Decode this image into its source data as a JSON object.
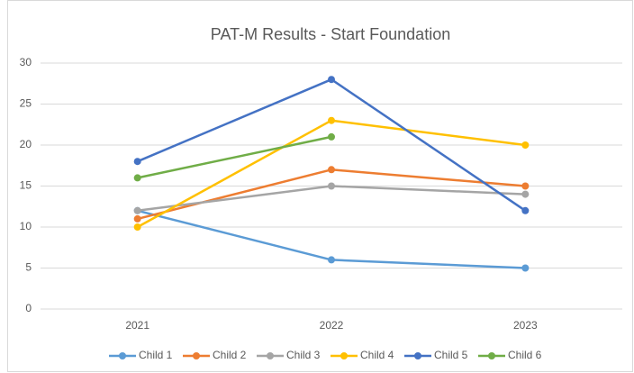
{
  "chart_data": {
    "type": "line",
    "title": "PAT-M Results - Start Foundation",
    "categories": [
      "2021",
      "2022",
      "2023"
    ],
    "series": [
      {
        "name": "Child 1",
        "color": "#5b9bd5",
        "values": [
          12,
          6,
          5
        ]
      },
      {
        "name": "Child 2",
        "color": "#ed7d31",
        "values": [
          11,
          17,
          15
        ]
      },
      {
        "name": "Child 3",
        "color": "#a5a5a5",
        "values": [
          12,
          15,
          14
        ]
      },
      {
        "name": "Child 4",
        "color": "#ffc000",
        "values": [
          10,
          23,
          20
        ]
      },
      {
        "name": "Child 5",
        "color": "#4472c4",
        "values": [
          18,
          28,
          12
        ]
      },
      {
        "name": "Child 6",
        "color": "#70ad47",
        "values": [
          16,
          21,
          null
        ]
      }
    ],
    "ylim": [
      0,
      30
    ],
    "yticks": [
      0,
      5,
      10,
      15,
      20,
      25,
      30
    ],
    "grid": true,
    "legend": "bottom"
  }
}
